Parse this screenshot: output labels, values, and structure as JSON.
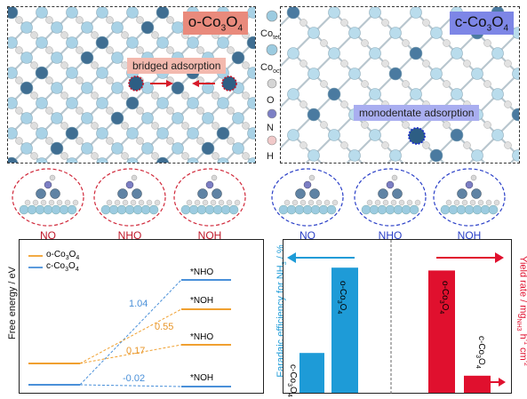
{
  "top_left": {
    "title_main": "o-Co",
    "title_sub": "3",
    "title_mid": "O",
    "title_sub2": "4",
    "annotation": "bridged adsorption",
    "tag_color": "#e98a7c"
  },
  "top_right": {
    "title_main": "c-Co",
    "title_sub": "3",
    "title_mid": "O",
    "title_sub2": "4",
    "annotation": "monodentate adsorption",
    "tag_color": "#7d86e6"
  },
  "atom_legend": [
    {
      "label": "Co",
      "sub": "tet",
      "color": "#9ccbe0"
    },
    {
      "label": "Co",
      "sub": "oct",
      "color": "#9ccbe0"
    },
    {
      "label": "O",
      "sub": "",
      "color": "#d5d5d5"
    },
    {
      "label": "N",
      "sub": "",
      "color": "#7c7fc4"
    },
    {
      "label": "H",
      "sub": "",
      "color": "#f1c9c9"
    }
  ],
  "intermediates_left": [
    "NO",
    "NHO",
    "NOH"
  ],
  "intermediates_right": [
    "NO",
    "NHO",
    "NOH"
  ],
  "energy_panel": {
    "ylabel": "Free energy / eV",
    "legend": [
      {
        "main": "o-Co",
        "s1": "3",
        "m2": "O",
        "s2": "4",
        "color": "#f0a030"
      },
      {
        "main": "c-Co",
        "s1": "3",
        "m2": "O",
        "s2": "4",
        "color": "#4a90d9"
      }
    ],
    "labels": {
      "nho_top": "*NHO",
      "noh_top": "*NOH",
      "nho_mid": "*NHO",
      "noh_bot": "*NOH"
    },
    "values": {
      "c_nho": "1.04",
      "o_noh": "0.55",
      "o_nho": "0.17",
      "c_noh": "-0.02"
    }
  },
  "chart_data": {
    "type": "bar",
    "categories": [
      "c-Co3O4",
      "o-Co3O4"
    ],
    "ylabel_left": "Faradaic efficiency for NH3 / %",
    "ylabel_right": "Yield rate / mgNH3 h-1 cm-2",
    "series": [
      {
        "name": "Faradaic efficiency",
        "values": [
          0.28,
          0.88
        ],
        "color": "#1e9bd7"
      },
      {
        "name": "Yield rate",
        "values": [
          0.86,
          0.12
        ],
        "color": "#e0102e"
      }
    ],
    "bar_labels": {
      "fe_c": {
        "main": "c-Co",
        "s1": "3",
        "m2": "O",
        "s2": "4"
      },
      "fe_o": {
        "main": "o-Co",
        "s1": "3",
        "m2": "O",
        "s2": "4"
      },
      "yr_o": {
        "main": "o-Co",
        "s1": "3",
        "m2": "O",
        "s2": "4"
      },
      "yr_c": {
        "main": "c-Co",
        "s1": "3",
        "m2": "O",
        "s2": "4"
      }
    },
    "axis_text": {
      "left_main": "Faradaic efficiency for NH",
      "left_sub": "3",
      "left_tail": " / %",
      "right_main": "Yield rate / mg",
      "right_sub": "NH3",
      "right_tail": " h",
      "right_sup1": "-1",
      "right_mid": " cm",
      "right_sup2": "-2"
    }
  }
}
